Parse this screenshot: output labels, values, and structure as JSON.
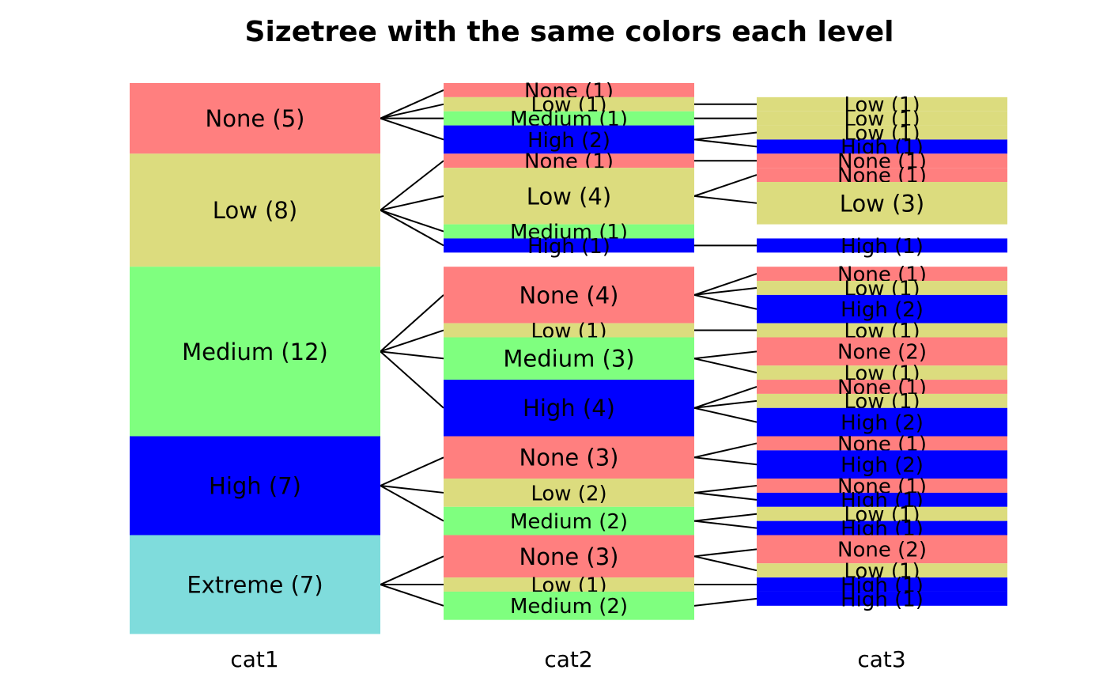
{
  "chart_data": {
    "type": "sizetree",
    "title": "Sizetree with the same colors each level",
    "columns": [
      "cat1",
      "cat2",
      "cat3"
    ],
    "colors": {
      "None": "#ff7f7f",
      "Low": "#dcdc7e",
      "Medium": "#7fff7f",
      "High": "#0000ff",
      "Extreme": "#7fdcdc"
    },
    "tree": [
      {
        "label": "None",
        "count": 5,
        "children": [
          {
            "label": "None",
            "count": 1,
            "children": []
          },
          {
            "label": "Low",
            "count": 1,
            "children": [
              {
                "label": "Low",
                "count": 1
              }
            ]
          },
          {
            "label": "Medium",
            "count": 1,
            "children": [
              {
                "label": "Low",
                "count": 1
              }
            ]
          },
          {
            "label": "High",
            "count": 2,
            "children": [
              {
                "label": "Low",
                "count": 1
              },
              {
                "label": "High",
                "count": 1
              }
            ]
          }
        ]
      },
      {
        "label": "Low",
        "count": 8,
        "children": [
          {
            "label": "None",
            "count": 1,
            "children": [
              {
                "label": "None",
                "count": 1
              }
            ]
          },
          {
            "label": "Low",
            "count": 4,
            "children": [
              {
                "label": "None",
                "count": 1
              },
              {
                "label": "Low",
                "count": 3
              }
            ]
          },
          {
            "label": "Medium",
            "count": 1,
            "children": []
          },
          {
            "label": "High",
            "count": 1,
            "children": [
              {
                "label": "High",
                "count": 1
              }
            ]
          }
        ]
      },
      {
        "label": "Medium",
        "count": 12,
        "children": [
          {
            "label": "None",
            "count": 4,
            "children": [
              {
                "label": "None",
                "count": 1
              },
              {
                "label": "Low",
                "count": 1
              },
              {
                "label": "High",
                "count": 2
              }
            ]
          },
          {
            "label": "Low",
            "count": 1,
            "children": [
              {
                "label": "Low",
                "count": 1
              }
            ]
          },
          {
            "label": "Medium",
            "count": 3,
            "children": [
              {
                "label": "None",
                "count": 2
              },
              {
                "label": "Low",
                "count": 1
              }
            ]
          },
          {
            "label": "High",
            "count": 4,
            "children": [
              {
                "label": "None",
                "count": 1
              },
              {
                "label": "Low",
                "count": 1
              },
              {
                "label": "High",
                "count": 2
              }
            ]
          }
        ]
      },
      {
        "label": "High",
        "count": 7,
        "children": [
          {
            "label": "None",
            "count": 3,
            "children": [
              {
                "label": "None",
                "count": 1
              },
              {
                "label": "High",
                "count": 2
              }
            ]
          },
          {
            "label": "Low",
            "count": 2,
            "children": [
              {
                "label": "None",
                "count": 1
              },
              {
                "label": "High",
                "count": 1
              }
            ]
          },
          {
            "label": "Medium",
            "count": 2,
            "children": [
              {
                "label": "Low",
                "count": 1
              },
              {
                "label": "High",
                "count": 1
              }
            ]
          }
        ]
      },
      {
        "label": "Extreme",
        "count": 7,
        "children": [
          {
            "label": "None",
            "count": 3,
            "children": [
              {
                "label": "None",
                "count": 2
              },
              {
                "label": "Low",
                "count": 1
              }
            ]
          },
          {
            "label": "Low",
            "count": 1,
            "children": [
              {
                "label": "High",
                "count": 1
              }
            ]
          },
          {
            "label": "Medium",
            "count": 2,
            "children": [
              {
                "label": "High",
                "count": 1
              }
            ]
          }
        ]
      }
    ]
  }
}
